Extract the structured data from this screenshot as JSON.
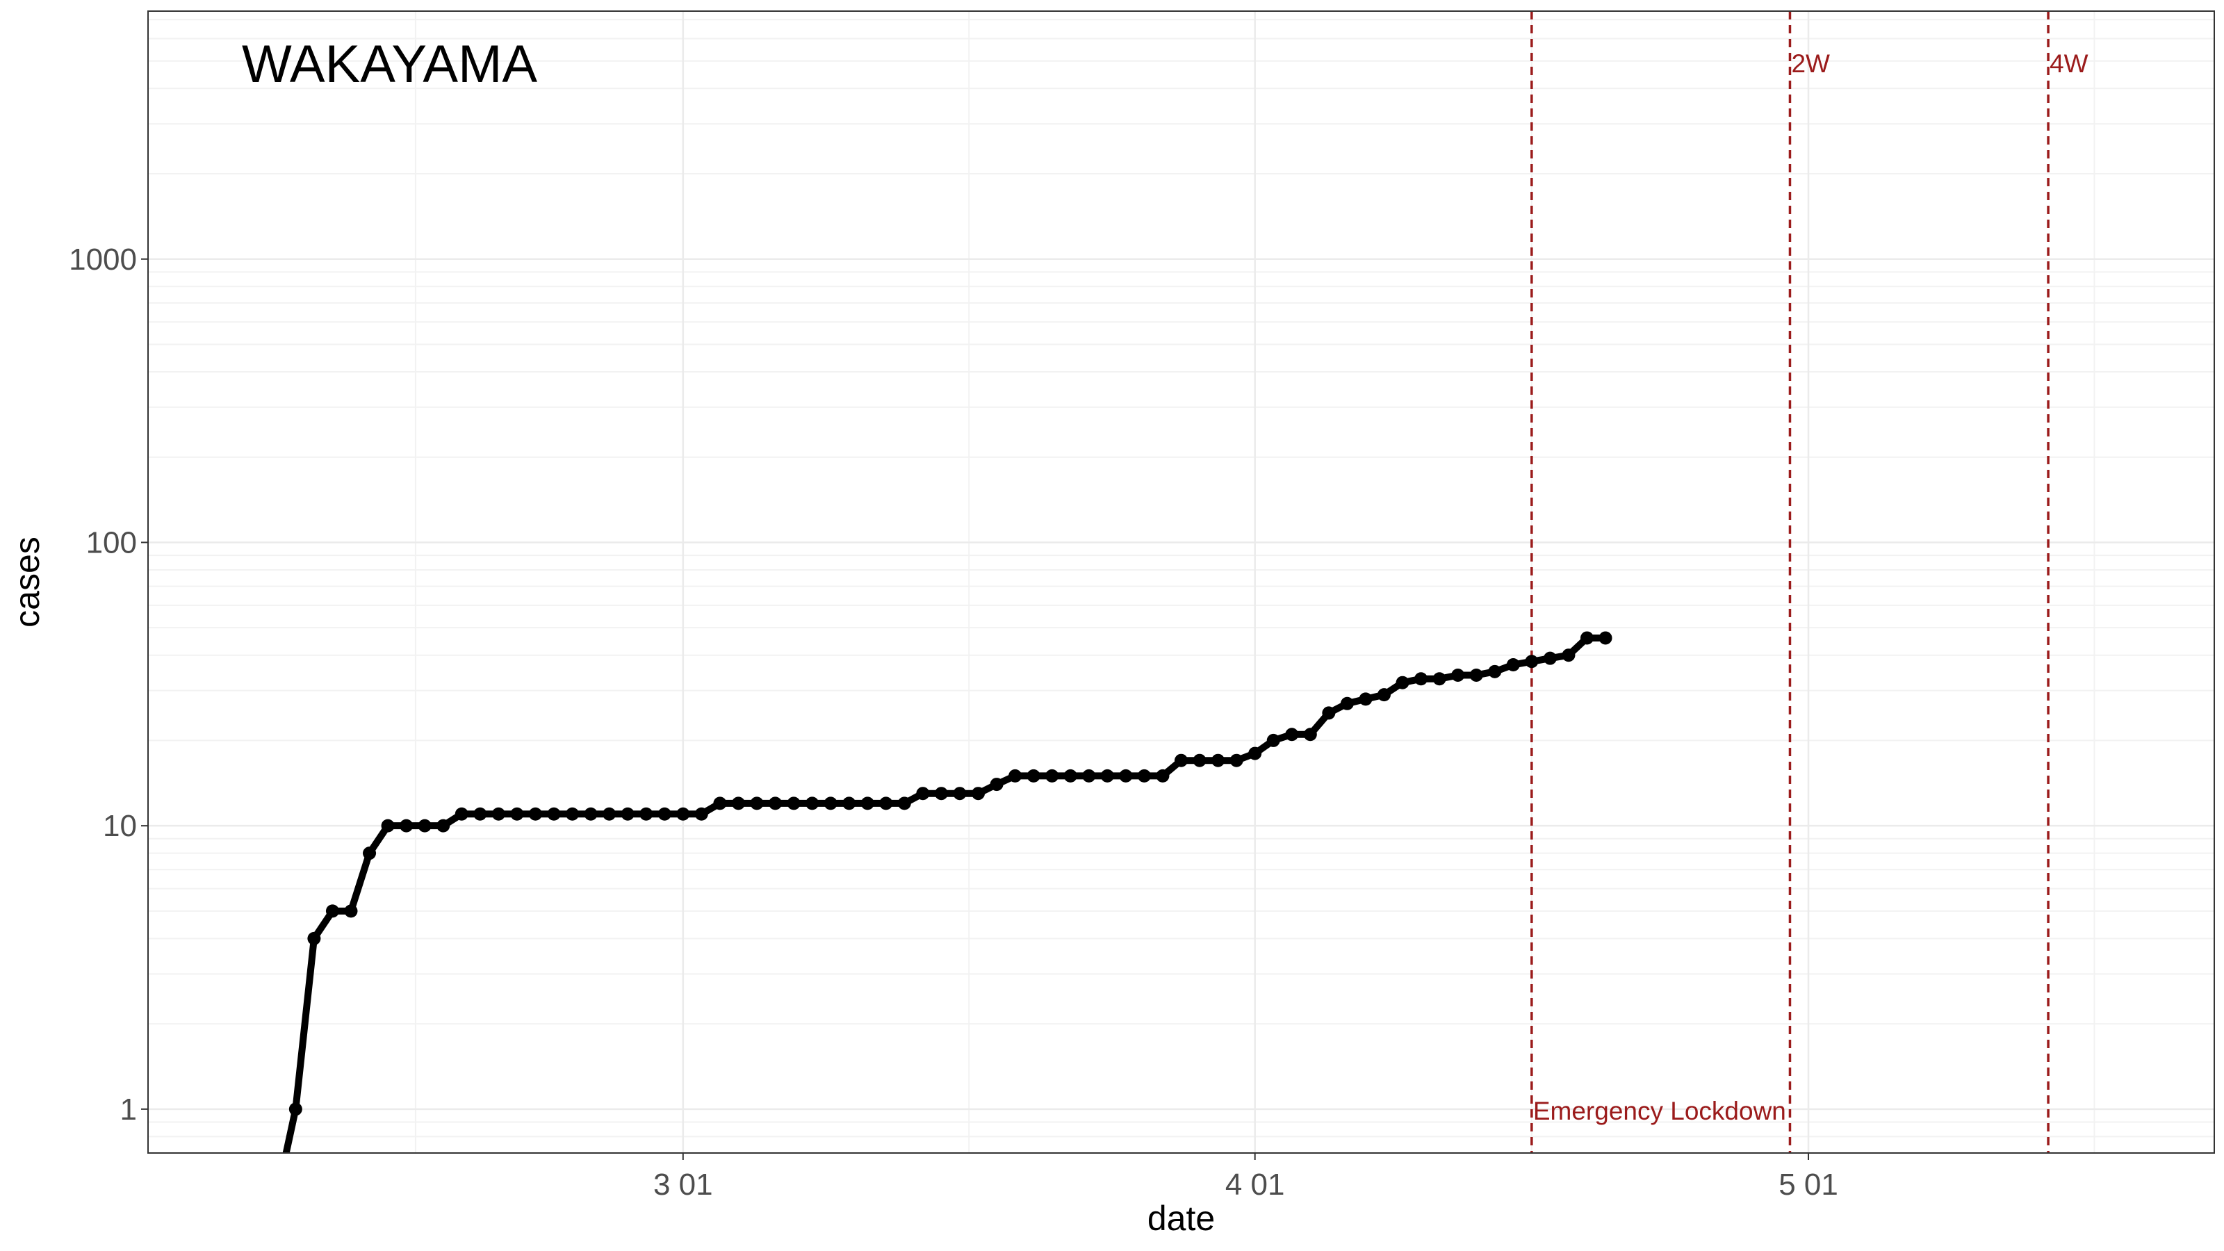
{
  "chart_data": {
    "type": "line",
    "title": "WAKAYAMA",
    "xlabel": "date",
    "ylabel": "cases",
    "y_scale": "log10",
    "ylim": [
      0.7,
      7500
    ],
    "xlim": [
      "2020-02-01",
      "2020-05-23"
    ],
    "y_ticks": [
      1,
      10,
      100,
      1000
    ],
    "y_tick_labels": [
      "1",
      "10",
      "100",
      "1000"
    ],
    "x_ticks": [
      "2020-03-01",
      "2020-04-01",
      "2020-05-01"
    ],
    "x_tick_labels": [
      "3 01",
      "4 01",
      "5 01"
    ],
    "grid": true,
    "line_color": "#000000",
    "series": [
      {
        "x": [
          "2020-02-01",
          "2020-02-02",
          "2020-02-03",
          "2020-02-04",
          "2020-02-05",
          "2020-02-06",
          "2020-02-07",
          "2020-02-08",
          "2020-02-09",
          "2020-02-10",
          "2020-02-11",
          "2020-02-12",
          "2020-02-13",
          "2020-02-14",
          "2020-02-15",
          "2020-02-16",
          "2020-02-17",
          "2020-02-18",
          "2020-02-19",
          "2020-02-20",
          "2020-02-21",
          "2020-02-22",
          "2020-02-23",
          "2020-02-24",
          "2020-02-25",
          "2020-02-26",
          "2020-02-27",
          "2020-02-28",
          "2020-02-29",
          "2020-03-01",
          "2020-03-02",
          "2020-03-03",
          "2020-03-04",
          "2020-03-05",
          "2020-03-06",
          "2020-03-07",
          "2020-03-08",
          "2020-03-09",
          "2020-03-10",
          "2020-03-11",
          "2020-03-12",
          "2020-03-13",
          "2020-03-14",
          "2020-03-15",
          "2020-03-16",
          "2020-03-17",
          "2020-03-18",
          "2020-03-19",
          "2020-03-20",
          "2020-03-21",
          "2020-03-22",
          "2020-03-23",
          "2020-03-24",
          "2020-03-25",
          "2020-03-26",
          "2020-03-27",
          "2020-03-28",
          "2020-03-29",
          "2020-03-30",
          "2020-03-31",
          "2020-04-01",
          "2020-04-02",
          "2020-04-03",
          "2020-04-04",
          "2020-04-05",
          "2020-04-06",
          "2020-04-07",
          "2020-04-08",
          "2020-04-09",
          "2020-04-10",
          "2020-04-11",
          "2020-04-12",
          "2020-04-13",
          "2020-04-14",
          "2020-04-15",
          "2020-04-16",
          "2020-04-17",
          "2020-04-18",
          "2020-04-19",
          "2020-04-20"
        ],
        "values": [
          0.5,
          0.5,
          0.5,
          0.5,
          0.5,
          0.5,
          0.5,
          0.5,
          1,
          4,
          5,
          5,
          8,
          10,
          10,
          10,
          10,
          11,
          11,
          11,
          11,
          11,
          11,
          11,
          11,
          11,
          11,
          11,
          11,
          11,
          11,
          12,
          12,
          12,
          12,
          12,
          12,
          12,
          12,
          12,
          12,
          12,
          13,
          13,
          13,
          13,
          14,
          15,
          15,
          15,
          15,
          15,
          15,
          15,
          15,
          15,
          17,
          17,
          17,
          17,
          18,
          20,
          21,
          21,
          25,
          27,
          28,
          29,
          32,
          33,
          33,
          34,
          34,
          35,
          37,
          38,
          39,
          40,
          46,
          46
        ]
      }
    ],
    "vlines": [
      {
        "x": "2020-04-16",
        "label": "Emergency Lockdown",
        "label_position": "bottom"
      },
      {
        "x": "2020-04-30",
        "label": "2W",
        "label_position": "top"
      },
      {
        "x": "2020-05-14",
        "label": "4W",
        "label_position": "top"
      }
    ],
    "vline_color": "#9b1b1b"
  }
}
